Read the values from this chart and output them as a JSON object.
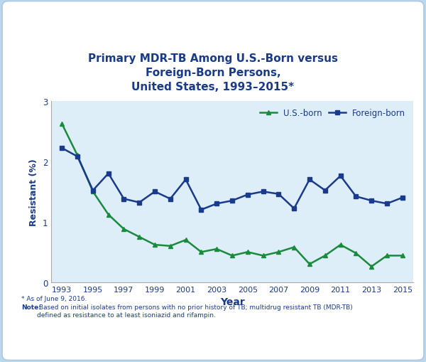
{
  "title": "Primary MDR-TB Among U.S.-Born versus\nForeign-Born Persons,\nUnited States, 1993–2015*",
  "title_color": "#1a3a8c",
  "xlabel": "Year",
  "ylabel": "Resistant (%)",
  "years": [
    1993,
    1994,
    1995,
    1996,
    1997,
    1998,
    1999,
    2000,
    2001,
    2002,
    2003,
    2004,
    2005,
    2006,
    2007,
    2008,
    2009,
    2010,
    2011,
    2012,
    2013,
    2014,
    2015
  ],
  "us_born": [
    2.62,
    2.1,
    1.5,
    1.12,
    0.88,
    0.75,
    0.62,
    0.6,
    0.7,
    0.5,
    0.55,
    0.44,
    0.5,
    0.44,
    0.5,
    0.58,
    0.3,
    0.44,
    0.62,
    0.48,
    0.26,
    0.44,
    0.44
  ],
  "foreign_born": [
    2.22,
    2.08,
    1.52,
    1.8,
    1.38,
    1.32,
    1.5,
    1.38,
    1.7,
    1.2,
    1.3,
    1.35,
    1.45,
    1.5,
    1.46,
    1.22,
    1.7,
    1.52,
    1.76,
    1.42,
    1.35,
    1.3,
    1.4
  ],
  "us_color": "#1a8a3c",
  "foreign_color": "#1a3a8c",
  "ylim": [
    0,
    3
  ],
  "yticks": [
    0,
    1,
    2,
    3
  ],
  "xticks": [
    1993,
    1995,
    1997,
    1999,
    2001,
    2003,
    2005,
    2007,
    2009,
    2011,
    2013,
    2015
  ],
  "outer_bg": "#b8d8ee",
  "panel_bg": "#ddeef8",
  "inner_bg": "#ddeef8",
  "footnote1": "* As of June 9, 2016.",
  "footnote2_bold": "Note:",
  "footnote2_rest": " Based on initial isolates from persons with no prior history of TB; multidrug resistant TB (MDR-TB)\ndefined as resistance to at least isoniazid and rifampin.",
  "legend_us": "U.S.-born",
  "legend_foreign": "Foreign-born"
}
